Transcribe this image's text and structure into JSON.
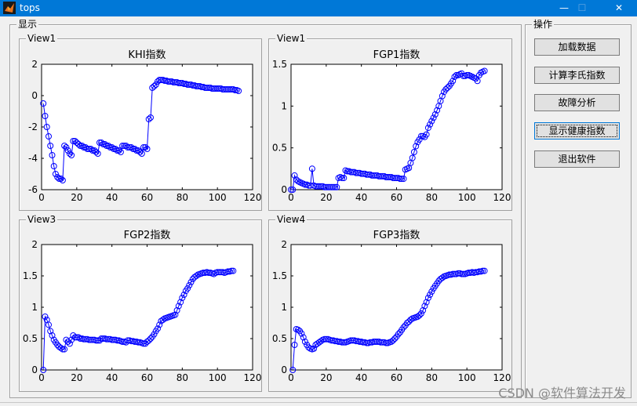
{
  "window": {
    "title": "tops",
    "controls": {
      "minimize": "—",
      "maximize": "☐",
      "close": "✕"
    }
  },
  "display_group": {
    "label": "显示"
  },
  "ops_group": {
    "label": "操作"
  },
  "buttons": [
    {
      "label": "加载数据"
    },
    {
      "label": "计算李氏指数"
    },
    {
      "label": "故障分析"
    },
    {
      "label": "显示健康指数",
      "focused": true
    },
    {
      "label": "退出软件"
    }
  ],
  "panels": [
    {
      "label": "View1"
    },
    {
      "label": "View1"
    },
    {
      "label": "View3"
    },
    {
      "label": "View4"
    }
  ],
  "watermark": "CSDN @软件算法开发",
  "chart_data": [
    {
      "type": "line",
      "title": "KHI指数",
      "xlim": [
        0,
        120
      ],
      "ylim": [
        -6,
        2
      ],
      "xticks": [
        0,
        20,
        40,
        60,
        80,
        100,
        120
      ],
      "yticks": [
        -6,
        -4,
        -2,
        0,
        2
      ],
      "marker": "circle",
      "color": "#0000ff",
      "x_start": 1,
      "y": [
        -0.5,
        -1.3,
        -2.0,
        -2.6,
        -3.2,
        -3.8,
        -4.5,
        -5.0,
        -5.2,
        -5.3,
        -5.3,
        -5.4,
        -3.2,
        -3.3,
        -3.5,
        -3.7,
        -3.8,
        -2.9,
        -2.9,
        -3.0,
        -3.1,
        -3.2,
        -3.2,
        -3.3,
        -3.3,
        -3.4,
        -3.4,
        -3.4,
        -3.5,
        -3.5,
        -3.6,
        -3.7,
        -3.0,
        -3.0,
        -3.1,
        -3.1,
        -3.2,
        -3.2,
        -3.3,
        -3.3,
        -3.4,
        -3.4,
        -3.5,
        -3.5,
        -3.6,
        -3.2,
        -3.2,
        -3.2,
        -3.3,
        -3.3,
        -3.3,
        -3.4,
        -3.4,
        -3.5,
        -3.5,
        -3.6,
        -3.7,
        -3.3,
        -3.3,
        -3.4,
        -1.5,
        -1.4,
        0.5,
        0.6,
        0.7,
        0.9,
        1.0,
        1.0,
        1.0,
        0.95,
        0.95,
        0.9,
        0.9,
        0.9,
        0.85,
        0.85,
        0.85,
        0.8,
        0.8,
        0.8,
        0.75,
        0.75,
        0.7,
        0.7,
        0.7,
        0.65,
        0.65,
        0.6,
        0.6,
        0.6,
        0.55,
        0.55,
        0.5,
        0.5,
        0.5,
        0.5,
        0.45,
        0.45,
        0.45,
        0.45,
        0.45,
        0.45,
        0.4,
        0.4,
        0.4,
        0.4,
        0.4,
        0.4,
        0.4,
        0.35,
        0.35,
        0.3
      ]
    },
    {
      "type": "line",
      "title": "FGP1指数",
      "xlim": [
        0,
        120
      ],
      "ylim": [
        0,
        1.5
      ],
      "xticks": [
        0,
        20,
        40,
        60,
        80,
        100,
        120
      ],
      "yticks": [
        0,
        0.5,
        1,
        1.5
      ],
      "marker": "circle",
      "color": "#0000ff",
      "x_start": 0,
      "y": [
        0.0,
        0.0,
        0.17,
        0.12,
        0.1,
        0.09,
        0.08,
        0.07,
        0.06,
        0.06,
        0.05,
        0.05,
        0.25,
        0.05,
        0.04,
        0.04,
        0.04,
        0.04,
        0.04,
        0.03,
        0.03,
        0.03,
        0.03,
        0.03,
        0.03,
        0.03,
        0.03,
        0.14,
        0.15,
        0.14,
        0.14,
        0.23,
        0.22,
        0.22,
        0.21,
        0.21,
        0.21,
        0.2,
        0.2,
        0.2,
        0.19,
        0.19,
        0.19,
        0.18,
        0.18,
        0.18,
        0.17,
        0.17,
        0.17,
        0.17,
        0.16,
        0.16,
        0.16,
        0.16,
        0.15,
        0.15,
        0.15,
        0.15,
        0.14,
        0.14,
        0.14,
        0.14,
        0.13,
        0.13,
        0.13,
        0.24,
        0.25,
        0.26,
        0.32,
        0.38,
        0.45,
        0.52,
        0.57,
        0.6,
        0.64,
        0.64,
        0.63,
        0.66,
        0.74,
        0.78,
        0.82,
        0.86,
        0.9,
        0.95,
        1.0,
        1.06,
        1.12,
        1.17,
        1.2,
        1.22,
        1.24,
        1.27,
        1.3,
        1.35,
        1.37,
        1.37,
        1.38,
        1.39,
        1.36,
        1.36,
        1.37,
        1.37,
        1.36,
        1.35,
        1.34,
        1.33,
        1.3,
        1.37,
        1.4,
        1.41,
        1.42
      ]
    },
    {
      "type": "line",
      "title": "FGP2指数",
      "xlim": [
        0,
        120
      ],
      "ylim": [
        0,
        2
      ],
      "xticks": [
        0,
        20,
        40,
        60,
        80,
        100,
        120
      ],
      "yticks": [
        0,
        0.5,
        1,
        1.5,
        2
      ],
      "marker": "circle",
      "color": "#0000ff",
      "x_start": 1,
      "y": [
        0.0,
        0.85,
        0.8,
        0.72,
        0.62,
        0.55,
        0.48,
        0.44,
        0.4,
        0.37,
        0.35,
        0.33,
        0.33,
        0.48,
        0.45,
        0.42,
        0.48,
        0.55,
        0.52,
        0.52,
        0.52,
        0.5,
        0.5,
        0.49,
        0.49,
        0.49,
        0.48,
        0.48,
        0.48,
        0.48,
        0.47,
        0.47,
        0.47,
        0.5,
        0.5,
        0.5,
        0.49,
        0.49,
        0.49,
        0.48,
        0.48,
        0.48,
        0.47,
        0.47,
        0.46,
        0.45,
        0.45,
        0.44,
        0.47,
        0.47,
        0.46,
        0.46,
        0.45,
        0.45,
        0.44,
        0.44,
        0.43,
        0.42,
        0.42,
        0.45,
        0.47,
        0.5,
        0.53,
        0.57,
        0.62,
        0.66,
        0.72,
        0.78,
        0.8,
        0.82,
        0.83,
        0.84,
        0.85,
        0.86,
        0.87,
        0.88,
        0.95,
        1.02,
        1.08,
        1.15,
        1.2,
        1.26,
        1.3,
        1.35,
        1.4,
        1.45,
        1.48,
        1.5,
        1.52,
        1.53,
        1.54,
        1.55,
        1.55,
        1.56,
        1.55,
        1.55,
        1.54,
        1.53,
        1.55,
        1.56,
        1.56,
        1.56,
        1.56,
        1.55,
        1.56,
        1.57,
        1.57,
        1.58,
        1.58
      ]
    },
    {
      "type": "line",
      "title": "FGP3指数",
      "xlim": [
        0,
        120
      ],
      "ylim": [
        0,
        2
      ],
      "xticks": [
        0,
        20,
        40,
        60,
        80,
        100,
        120
      ],
      "yticks": [
        0,
        0.5,
        1,
        1.5,
        2
      ],
      "marker": "circle",
      "color": "#0000ff",
      "x_start": 1,
      "y": [
        0.0,
        0.4,
        0.65,
        0.64,
        0.62,
        0.58,
        0.52,
        0.45,
        0.4,
        0.36,
        0.34,
        0.33,
        0.34,
        0.4,
        0.42,
        0.44,
        0.46,
        0.48,
        0.49,
        0.49,
        0.49,
        0.48,
        0.47,
        0.47,
        0.46,
        0.46,
        0.45,
        0.45,
        0.44,
        0.44,
        0.44,
        0.45,
        0.46,
        0.47,
        0.47,
        0.47,
        0.46,
        0.46,
        0.45,
        0.45,
        0.44,
        0.44,
        0.43,
        0.43,
        0.44,
        0.44,
        0.45,
        0.45,
        0.45,
        0.45,
        0.44,
        0.44,
        0.44,
        0.43,
        0.43,
        0.44,
        0.45,
        0.47,
        0.5,
        0.53,
        0.57,
        0.6,
        0.64,
        0.68,
        0.71,
        0.75,
        0.77,
        0.8,
        0.82,
        0.83,
        0.84,
        0.85,
        0.87,
        0.9,
        0.95,
        1.02,
        1.08,
        1.15,
        1.2,
        1.25,
        1.3,
        1.34,
        1.38,
        1.42,
        1.45,
        1.47,
        1.49,
        1.5,
        1.51,
        1.52,
        1.52,
        1.53,
        1.53,
        1.53,
        1.54,
        1.54,
        1.53,
        1.53,
        1.53,
        1.54,
        1.55,
        1.55,
        1.56,
        1.55,
        1.56,
        1.56,
        1.57,
        1.57,
        1.58,
        1.58
      ]
    }
  ]
}
